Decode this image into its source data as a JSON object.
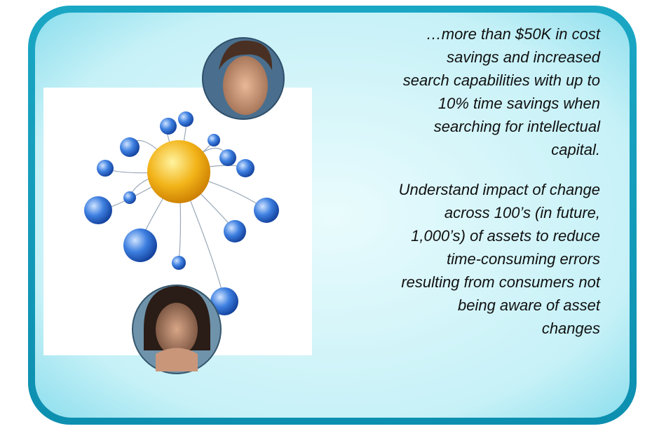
{
  "quotes": [
    {
      "lines": [
        "…more than $50K in cost",
        "savings and increased",
        "search capabilities with up to",
        "10% time savings when",
        "searching for intellectual",
        "capital."
      ]
    },
    {
      "lines": [
        "Understand impact of change",
        "across 100’s (in future,",
        "1,000’s) of assets to reduce",
        "time-consuming errors",
        "resulting from  consumers not",
        "being aware of asset",
        "changes"
      ]
    }
  ]
}
